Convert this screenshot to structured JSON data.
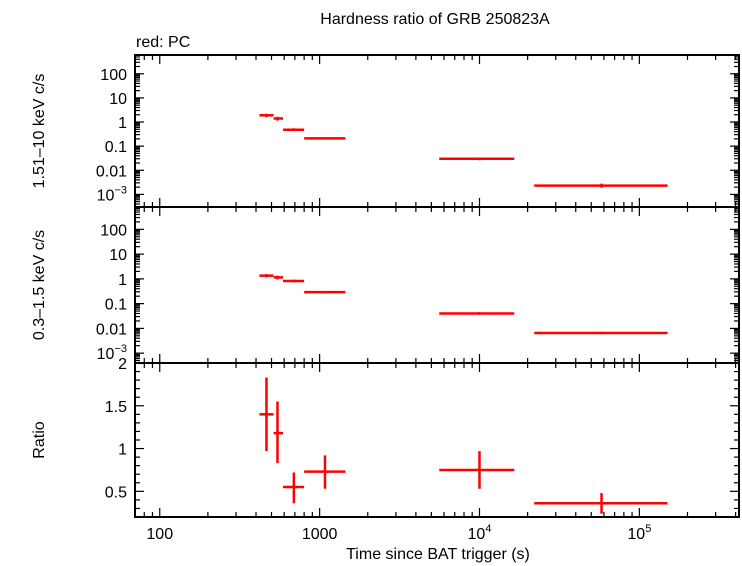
{
  "chart_data": {
    "type": "scatter",
    "title": "Hardness ratio of GRB 250823A",
    "subtitle": "red: PC",
    "xlabel": "Time since BAT trigger (s)",
    "xscale": "log",
    "xlim": [
      70,
      420000
    ],
    "x_ticks": [
      {
        "value": 100,
        "label": "100"
      },
      {
        "value": 1000,
        "label": "1000"
      },
      {
        "value": 10000,
        "label": "10",
        "exp": "4"
      },
      {
        "value": 100000,
        "label": "10",
        "exp": "5"
      }
    ],
    "series_color": "#ff0000",
    "panels": [
      {
        "ylabel": "1.51–10 keV c/s",
        "yscale": "log",
        "ylim": [
          0.0003,
          600
        ],
        "y_ticks": [
          {
            "value": 100,
            "label": "100"
          },
          {
            "value": 10,
            "label": "10"
          },
          {
            "value": 1,
            "label": "1"
          },
          {
            "value": 0.1,
            "label": "0.1"
          },
          {
            "value": 0.01,
            "label": "0.01"
          },
          {
            "value": 0.001,
            "label": "10",
            "exp": "−3"
          }
        ],
        "points": [
          {
            "x": 465,
            "xlo": 420,
            "xhi": 515,
            "y": 1.9,
            "ylo": 1.6,
            "yhi": 2.2
          },
          {
            "x": 545,
            "xlo": 515,
            "xhi": 590,
            "y": 1.4,
            "ylo": 1.15,
            "yhi": 1.65
          },
          {
            "x": 690,
            "xlo": 590,
            "xhi": 800,
            "y": 0.48,
            "ylo": 0.42,
            "yhi": 0.55
          },
          {
            "x": 1080,
            "xlo": 800,
            "xhi": 1450,
            "y": 0.21,
            "ylo": 0.19,
            "yhi": 0.235
          },
          {
            "x": 10000,
            "xlo": 5600,
            "xhi": 16500,
            "y": 0.03,
            "ylo": 0.026,
            "yhi": 0.034
          },
          {
            "x": 58000,
            "xlo": 22000,
            "xhi": 150000,
            "y": 0.0023,
            "ylo": 0.0019,
            "yhi": 0.0028
          }
        ]
      },
      {
        "ylabel": "0.3–1.5 keV c/s",
        "yscale": "log",
        "ylim": [
          0.0004,
          800
        ],
        "y_ticks": [
          {
            "value": 100,
            "label": "100"
          },
          {
            "value": 10,
            "label": "10"
          },
          {
            "value": 1,
            "label": "1"
          },
          {
            "value": 0.1,
            "label": "0.1"
          },
          {
            "value": 0.01,
            "label": "0.01"
          },
          {
            "value": 0.001,
            "label": "10",
            "exp": "−3"
          }
        ],
        "points": [
          {
            "x": 465,
            "xlo": 420,
            "xhi": 515,
            "y": 1.35,
            "ylo": 1.15,
            "yhi": 1.55
          },
          {
            "x": 545,
            "xlo": 515,
            "xhi": 590,
            "y": 1.15,
            "ylo": 0.95,
            "yhi": 1.35
          },
          {
            "x": 690,
            "xlo": 590,
            "xhi": 800,
            "y": 0.82,
            "ylo": 0.72,
            "yhi": 0.93
          },
          {
            "x": 1080,
            "xlo": 800,
            "xhi": 1450,
            "y": 0.29,
            "ylo": 0.26,
            "yhi": 0.32
          },
          {
            "x": 10000,
            "xlo": 5600,
            "xhi": 16500,
            "y": 0.04,
            "ylo": 0.036,
            "yhi": 0.045
          },
          {
            "x": 58000,
            "xlo": 22000,
            "xhi": 150000,
            "y": 0.0065,
            "ylo": 0.0058,
            "yhi": 0.0073
          }
        ]
      },
      {
        "ylabel": "Ratio",
        "yscale": "linear",
        "ylim": [
          0.2,
          2.0
        ],
        "y_ticks": [
          {
            "value": 0.5,
            "label": "0.5"
          },
          {
            "value": 1,
            "label": "1"
          },
          {
            "value": 1.5,
            "label": "1.5"
          },
          {
            "value": 2,
            "label": "2"
          }
        ],
        "points": [
          {
            "x": 465,
            "xlo": 420,
            "xhi": 515,
            "y": 1.4,
            "ylo": 0.97,
            "yhi": 1.83
          },
          {
            "x": 545,
            "xlo": 515,
            "xhi": 590,
            "y": 1.18,
            "ylo": 0.83,
            "yhi": 1.55
          },
          {
            "x": 690,
            "xlo": 590,
            "xhi": 800,
            "y": 0.55,
            "ylo": 0.36,
            "yhi": 0.72
          },
          {
            "x": 1080,
            "xlo": 800,
            "xhi": 1450,
            "y": 0.73,
            "ylo": 0.53,
            "yhi": 0.92
          },
          {
            "x": 10000,
            "xlo": 5600,
            "xhi": 16500,
            "y": 0.75,
            "ylo": 0.53,
            "yhi": 0.97
          },
          {
            "x": 58000,
            "xlo": 22000,
            "xhi": 150000,
            "y": 0.36,
            "ylo": 0.24,
            "yhi": 0.48
          }
        ]
      }
    ]
  }
}
